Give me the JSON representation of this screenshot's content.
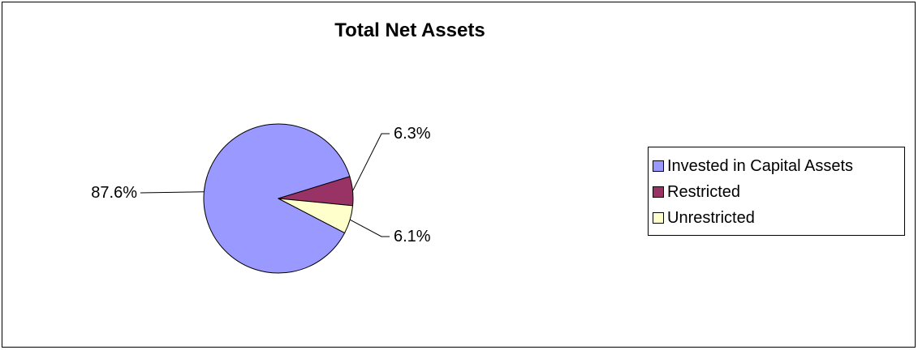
{
  "chart_data": {
    "type": "pie",
    "title": "Total Net Assets",
    "slices": [
      {
        "name": "Invested in Capital Assets",
        "value": 87.6,
        "label": "87.6%",
        "color": "#9999ff"
      },
      {
        "name": "Restricted",
        "value": 6.3,
        "label": "6.3%",
        "color": "#993366"
      },
      {
        "name": "Unrestricted",
        "value": 6.1,
        "label": "6.1%",
        "color": "#ffffcc"
      }
    ],
    "legend_position": "right"
  }
}
